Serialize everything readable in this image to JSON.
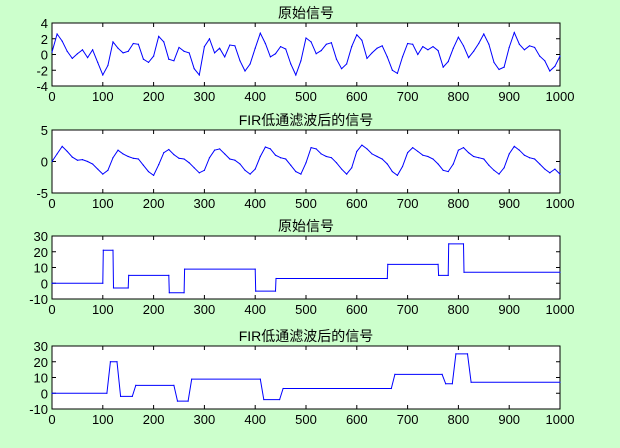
{
  "figure": {
    "background": "#ccffcc",
    "line_color": "#0000ff",
    "axis_color": "#000000",
    "panel_background": "#ffffff"
  },
  "chart_data": [
    {
      "type": "line",
      "title": "原始信号",
      "xlim": [
        0,
        1000
      ],
      "ylim": [
        -4,
        4
      ],
      "xticks": [
        0,
        100,
        200,
        300,
        400,
        500,
        600,
        700,
        800,
        900,
        1000
      ],
      "yticks": [
        -4,
        -2,
        0,
        2,
        4
      ],
      "x": [
        0,
        10,
        20,
        30,
        40,
        50,
        60,
        70,
        80,
        90,
        100,
        110,
        120,
        130,
        140,
        150,
        160,
        170,
        180,
        190,
        200,
        210,
        220,
        230,
        240,
        250,
        260,
        270,
        280,
        290,
        300,
        310,
        320,
        330,
        340,
        350,
        360,
        370,
        380,
        390,
        400,
        410,
        420,
        430,
        440,
        450,
        460,
        470,
        480,
        490,
        500,
        510,
        520,
        530,
        540,
        550,
        560,
        570,
        580,
        590,
        600,
        610,
        620,
        630,
        640,
        650,
        660,
        670,
        680,
        690,
        700,
        710,
        720,
        730,
        740,
        750,
        760,
        770,
        780,
        790,
        800,
        810,
        820,
        830,
        840,
        850,
        860,
        870,
        880,
        890,
        900,
        910,
        920,
        930,
        940,
        950,
        960,
        970,
        980,
        990,
        1000
      ],
      "y": [
        0.3,
        2.6,
        1.7,
        0.4,
        -0.5,
        0.1,
        0.6,
        -0.4,
        0.6,
        -1.0,
        -2.6,
        -1.4,
        1.6,
        0.8,
        0.2,
        0.4,
        1.4,
        1.3,
        -0.6,
        -1.0,
        -0.2,
        2.3,
        1.6,
        -0.6,
        -0.8,
        0.9,
        0.4,
        0.2,
        -1.8,
        -2.6,
        1.0,
        2.0,
        0.2,
        0.8,
        -0.3,
        1.2,
        1.1,
        -0.8,
        -2.1,
        -1.2,
        0.8,
        2.7,
        1.4,
        -0.3,
        0.1,
        1.0,
        0.7,
        -1.2,
        -2.6,
        -0.8,
        2.1,
        1.6,
        0.1,
        0.5,
        1.3,
        1.5,
        -0.6,
        -1.8,
        -1.2,
        1.0,
        2.5,
        1.8,
        -0.5,
        0.2,
        0.8,
        1.1,
        -0.3,
        -2.0,
        -2.4,
        -0.3,
        1.4,
        1.3,
        0.0,
        1.0,
        0.6,
        1.0,
        0.5,
        -1.6,
        -0.9,
        0.8,
        2.2,
        1.1,
        -0.4,
        0.4,
        1.4,
        2.6,
        1.3,
        -1.0,
        -1.9,
        -1.6,
        0.9,
        2.8,
        1.3,
        0.6,
        1.1,
        0.9,
        -0.2,
        -0.8,
        -2.1,
        -1.5,
        -0.2
      ]
    },
    {
      "type": "line",
      "title": "FIR低通滤波后的信号",
      "xlim": [
        0,
        1000
      ],
      "ylim": [
        -5,
        5
      ],
      "xticks": [
        0,
        100,
        200,
        300,
        400,
        500,
        600,
        700,
        800,
        900,
        1000
      ],
      "yticks": [
        -5,
        0,
        5
      ],
      "x": [
        0,
        10,
        20,
        30,
        40,
        50,
        60,
        70,
        80,
        90,
        100,
        110,
        120,
        130,
        140,
        150,
        160,
        170,
        180,
        190,
        200,
        210,
        220,
        230,
        240,
        250,
        260,
        270,
        280,
        290,
        300,
        310,
        320,
        330,
        340,
        350,
        360,
        370,
        380,
        390,
        400,
        410,
        420,
        430,
        440,
        450,
        460,
        470,
        480,
        490,
        500,
        510,
        520,
        530,
        540,
        550,
        560,
        570,
        580,
        590,
        600,
        610,
        620,
        630,
        640,
        650,
        660,
        670,
        680,
        690,
        700,
        710,
        720,
        730,
        740,
        750,
        760,
        770,
        780,
        790,
        800,
        810,
        820,
        830,
        840,
        850,
        860,
        870,
        880,
        890,
        900,
        910,
        920,
        930,
        940,
        950,
        960,
        970,
        980,
        990,
        1000
      ],
      "y": [
        0.0,
        1.2,
        2.4,
        1.6,
        0.7,
        0.2,
        0.3,
        0.0,
        -0.4,
        -1.2,
        -2.0,
        -1.4,
        0.6,
        1.8,
        1.2,
        0.8,
        0.5,
        0.4,
        -0.6,
        -1.6,
        -2.2,
        -0.5,
        1.4,
        1.9,
        1.1,
        0.5,
        0.4,
        -0.2,
        -1.0,
        -1.8,
        -1.4,
        0.6,
        1.8,
        2.0,
        1.2,
        0.4,
        0.2,
        -0.4,
        -1.4,
        -2.0,
        -1.2,
        0.8,
        2.3,
        2.0,
        1.0,
        0.6,
        0.4,
        -0.6,
        -1.6,
        -2.0,
        -0.2,
        2.2,
        2.0,
        1.2,
        0.8,
        0.6,
        -0.2,
        -1.2,
        -2.0,
        -1.0,
        1.6,
        2.6,
        2.0,
        1.2,
        0.8,
        0.4,
        -0.4,
        -1.6,
        -2.2,
        -0.8,
        1.4,
        2.2,
        1.6,
        1.0,
        0.8,
        0.4,
        -0.4,
        -1.4,
        -1.6,
        -0.4,
        1.8,
        2.2,
        1.4,
        0.8,
        0.6,
        0.4,
        -0.6,
        -1.4,
        -2.0,
        -1.0,
        1.2,
        2.4,
        1.8,
        1.0,
        0.6,
        0.4,
        -0.4,
        -1.2,
        -1.8,
        -1.2,
        -2.0
      ]
    },
    {
      "type": "line",
      "title": "原始信号",
      "xlim": [
        0,
        1000
      ],
      "ylim": [
        -10,
        30
      ],
      "xticks": [
        0,
        100,
        200,
        300,
        400,
        500,
        600,
        700,
        800,
        900,
        1000
      ],
      "yticks": [
        -10,
        0,
        10,
        20,
        30
      ],
      "x": [
        0,
        100,
        101,
        120,
        121,
        150,
        151,
        230,
        231,
        260,
        261,
        400,
        401,
        440,
        441,
        660,
        661,
        760,
        761,
        780,
        781,
        810,
        811,
        1000
      ],
      "y": [
        0,
        0,
        21,
        21,
        -3,
        -3,
        5,
        5,
        -6,
        -6,
        9,
        9,
        -5,
        -5,
        3,
        3,
        12,
        12,
        5,
        5,
        25,
        25,
        7,
        7
      ]
    },
    {
      "type": "line",
      "title": "FIR低通滤波后的信号",
      "xlim": [
        0,
        1000
      ],
      "ylim": [
        -10,
        30
      ],
      "xticks": [
        0,
        100,
        200,
        300,
        400,
        500,
        600,
        700,
        800,
        900,
        1000
      ],
      "yticks": [
        -10,
        0,
        10,
        20,
        30
      ],
      "x": [
        0,
        108,
        115,
        128,
        135,
        158,
        165,
        240,
        247,
        268,
        275,
        410,
        417,
        448,
        455,
        668,
        675,
        768,
        775,
        788,
        795,
        818,
        825,
        1000
      ],
      "y": [
        0,
        0,
        20,
        20,
        -2,
        -2,
        5,
        5,
        -5,
        -5,
        9,
        9,
        -4,
        -4,
        3,
        3,
        12,
        12,
        6,
        6,
        25,
        25,
        7,
        7
      ]
    }
  ]
}
